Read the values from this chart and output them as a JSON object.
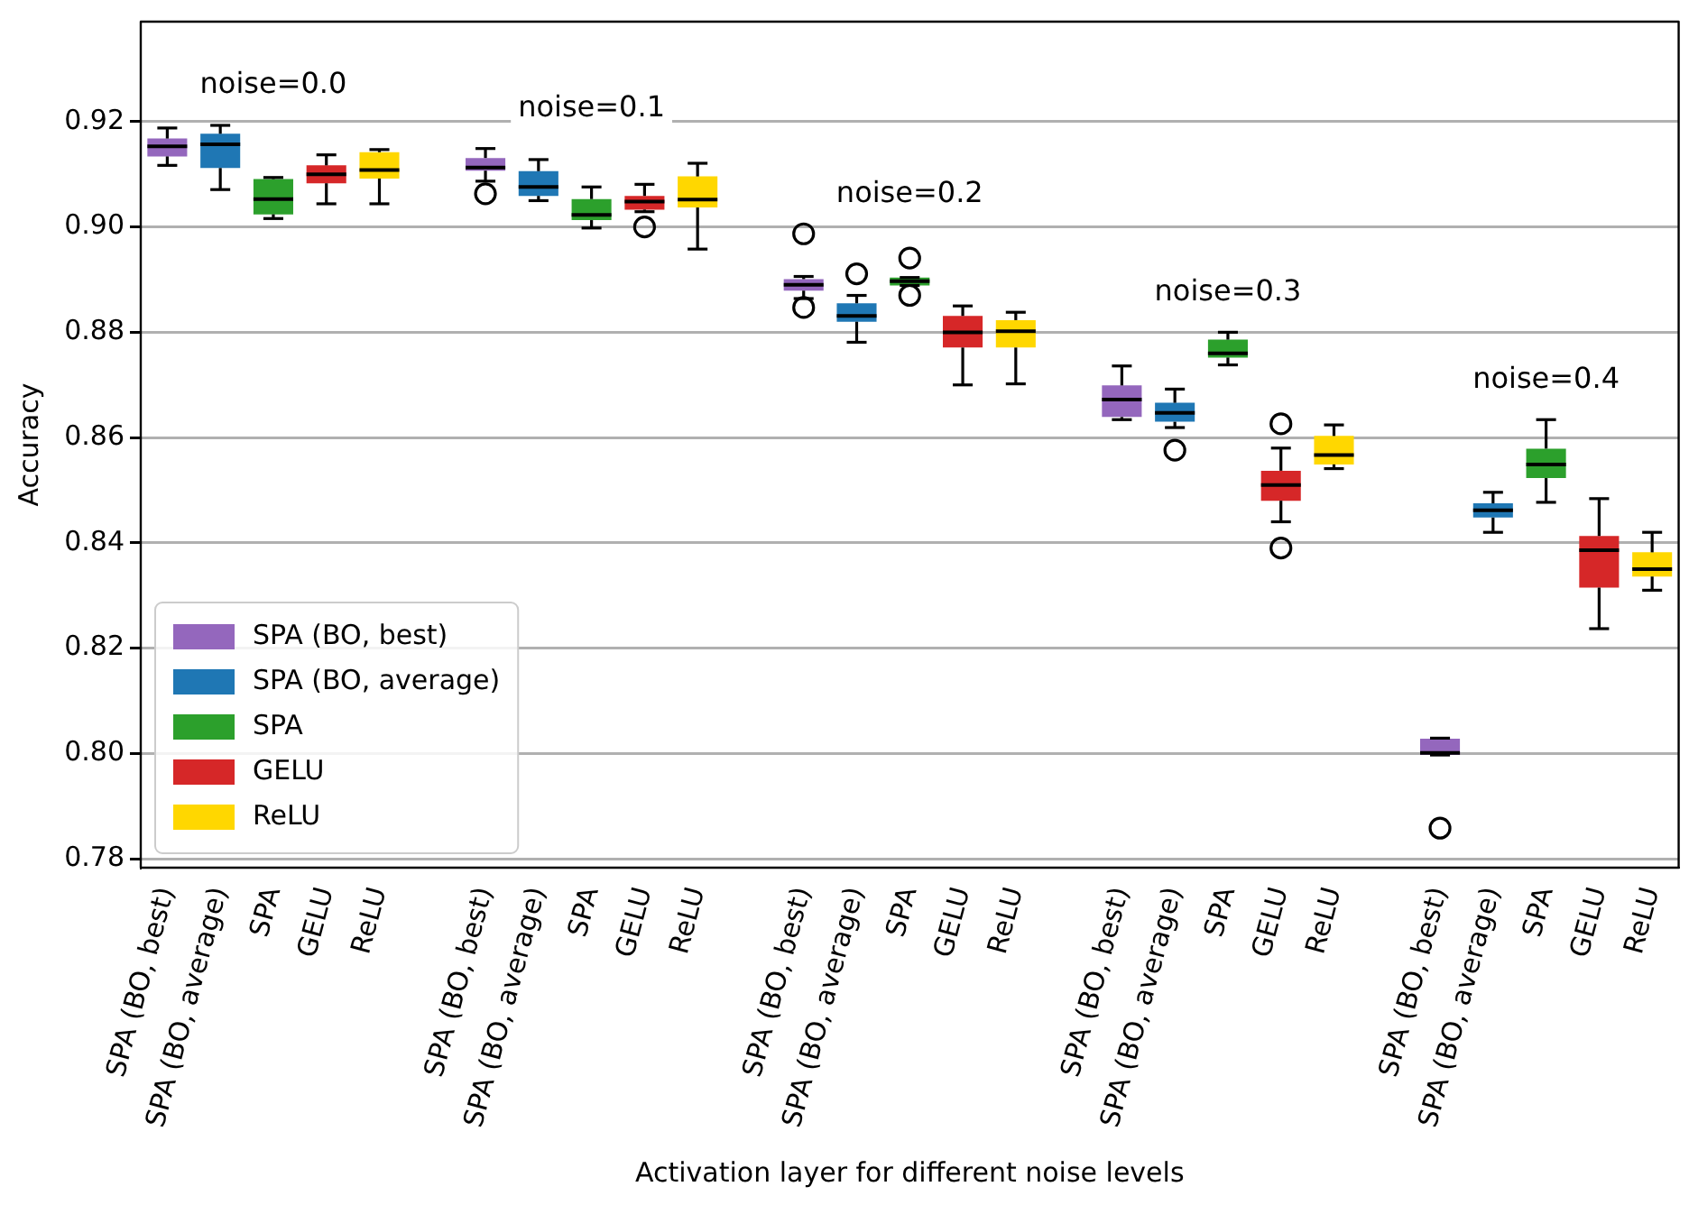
{
  "chart_data": {
    "type": "box",
    "xlabel": "Activation layer for different noise levels",
    "ylabel": "Accuracy",
    "categories": [
      "SPA (BO, best)",
      "SPA (BO, average)",
      "SPA",
      "GELU",
      "ReLU",
      null,
      "SPA (BO, best)",
      "SPA (BO, average)",
      "SPA",
      "GELU",
      "ReLU",
      null,
      "SPA (BO, best)",
      "SPA (BO, average)",
      "SPA",
      "GELU",
      "ReLU",
      null,
      "SPA (BO, best)",
      "SPA (BO, average)",
      "SPA",
      "GELU",
      "ReLU",
      null,
      "SPA (BO, best)",
      "SPA (BO, average)",
      "SPA",
      "GELU",
      "ReLU"
    ],
    "ylim": [
      0.7783,
      0.939
    ],
    "yticks": [
      {
        "value": 0.78,
        "label": "0.78"
      },
      {
        "value": 0.8,
        "label": "0.80"
      },
      {
        "value": 0.82,
        "label": "0.82"
      },
      {
        "value": 0.84,
        "label": "0.84"
      },
      {
        "value": 0.86,
        "label": "0.86"
      },
      {
        "value": 0.88,
        "label": "0.88"
      },
      {
        "value": 0.9,
        "label": "0.90"
      },
      {
        "value": 0.92,
        "label": "0.92"
      }
    ],
    "grid": "y",
    "legend": "bottom left",
    "annotations": [
      "noise=0.0",
      "noise=0.1",
      "noise=0.2",
      "noise=0.3",
      "noise=0.4"
    ],
    "series": [
      {
        "name": "SPA (BO, best)",
        "color": "#9467bd",
        "boxes": [
          {
            "low": 0.9117,
            "q1": 0.9134,
            "median": 0.9153,
            "q3": 0.9168,
            "high": 0.9188
          },
          null,
          null,
          null,
          null,
          null,
          {
            "low": 0.9087,
            "q1": 0.9107,
            "median": 0.9113,
            "q3": 0.9131,
            "high": 0.9149,
            "outliers": [
              0.9063
            ]
          },
          null,
          null,
          null,
          null,
          null,
          {
            "low": 0.8864,
            "q1": 0.8879,
            "median": 0.889,
            "q3": 0.8901,
            "high": 0.8906,
            "outliers": [
              0.8987,
              0.8847
            ]
          },
          null,
          null,
          null,
          null,
          null,
          {
            "low": 0.8634,
            "q1": 0.8639,
            "median": 0.8672,
            "q3": 0.8699,
            "high": 0.8736
          },
          null,
          null,
          null,
          null,
          null,
          {
            "low": 0.7997,
            "q1": 0.7997,
            "median": 0.8001,
            "q3": 0.8028,
            "high": 0.8029,
            "outliers": [
              0.7858
            ]
          },
          null,
          null,
          null,
          null
        ]
      },
      {
        "name": "SPA (BO, average)",
        "color": "#1f77b4",
        "boxes": [
          null,
          {
            "low": 0.9071,
            "q1": 0.9112,
            "median": 0.9157,
            "q3": 0.9177,
            "high": 0.9193
          },
          null,
          null,
          null,
          null,
          null,
          {
            "low": 0.905,
            "q1": 0.9059,
            "median": 0.9076,
            "q3": 0.9106,
            "high": 0.9128
          },
          null,
          null,
          null,
          null,
          null,
          {
            "low": 0.8781,
            "q1": 0.882,
            "median": 0.8831,
            "q3": 0.8855,
            "high": 0.887,
            "outliers": [
              0.8911
            ]
          },
          null,
          null,
          null,
          null,
          null,
          {
            "low": 0.8619,
            "q1": 0.863,
            "median": 0.8647,
            "q3": 0.8666,
            "high": 0.8692,
            "outliers": [
              0.8576
            ]
          },
          null,
          null,
          null,
          null,
          null,
          {
            "low": 0.842,
            "q1": 0.8448,
            "median": 0.8462,
            "q3": 0.8475,
            "high": 0.8496
          },
          null,
          null,
          null
        ]
      },
      {
        "name": "SPA",
        "color": "#2ca02c",
        "boxes": [
          null,
          null,
          {
            "low": 0.9016,
            "q1": 0.9024,
            "median": 0.9053,
            "q3": 0.9091,
            "high": 0.9094
          },
          null,
          null,
          null,
          null,
          null,
          {
            "low": 0.8998,
            "q1": 0.9013,
            "median": 0.9023,
            "q3": 0.9053,
            "high": 0.9076
          },
          null,
          null,
          null,
          null,
          null,
          {
            "low": 0.8889,
            "q1": 0.8889,
            "median": 0.8897,
            "q3": 0.8904,
            "high": 0.8904,
            "outliers": [
              0.8941,
              0.887
            ]
          },
          null,
          null,
          null,
          null,
          null,
          {
            "low": 0.8738,
            "q1": 0.8752,
            "median": 0.876,
            "q3": 0.8786,
            "high": 0.88
          },
          null,
          null,
          null,
          null,
          null,
          {
            "low": 0.8477,
            "q1": 0.8523,
            "median": 0.8549,
            "q3": 0.8579,
            "high": 0.8634
          },
          null,
          null
        ]
      },
      {
        "name": "GELU",
        "color": "#d62728",
        "boxes": [
          null,
          null,
          null,
          {
            "low": 0.9044,
            "q1": 0.9083,
            "median": 0.91,
            "q3": 0.9117,
            "high": 0.9137
          },
          null,
          null,
          null,
          null,
          null,
          {
            "low": 0.9029,
            "q1": 0.9033,
            "median": 0.9048,
            "q3": 0.9059,
            "high": 0.9081,
            "outliers": [
              0.9
            ]
          },
          null,
          null,
          null,
          null,
          null,
          {
            "low": 0.87,
            "q1": 0.8771,
            "median": 0.88,
            "q3": 0.8831,
            "high": 0.885
          },
          null,
          null,
          null,
          null,
          null,
          {
            "low": 0.844,
            "q1": 0.848,
            "median": 0.851,
            "q3": 0.8537,
            "high": 0.858,
            "outliers": [
              0.8626,
              0.839
            ]
          },
          null,
          null,
          null,
          null,
          null,
          {
            "low": 0.8237,
            "q1": 0.8315,
            "median": 0.8386,
            "q3": 0.8413,
            "high": 0.8484
          },
          null
        ]
      },
      {
        "name": "ReLU",
        "color": "#ffd700",
        "boxes": [
          null,
          null,
          null,
          null,
          {
            "low": 0.9044,
            "q1": 0.9092,
            "median": 0.9108,
            "q3": 0.9142,
            "high": 0.9147
          },
          null,
          null,
          null,
          null,
          null,
          {
            "low": 0.8958,
            "q1": 0.9037,
            "median": 0.9052,
            "q3": 0.9096,
            "high": 0.9121
          },
          null,
          null,
          null,
          null,
          null,
          {
            "low": 0.8702,
            "q1": 0.8771,
            "median": 0.8802,
            "q3": 0.8823,
            "high": 0.8838
          },
          null,
          null,
          null,
          null,
          null,
          {
            "low": 0.8541,
            "q1": 0.8549,
            "median": 0.8567,
            "q3": 0.8603,
            "high": 0.8624
          },
          null,
          null,
          null,
          null,
          null,
          {
            "low": 0.831,
            "q1": 0.8336,
            "median": 0.835,
            "q3": 0.8382,
            "high": 0.842
          }
        ]
      }
    ]
  }
}
